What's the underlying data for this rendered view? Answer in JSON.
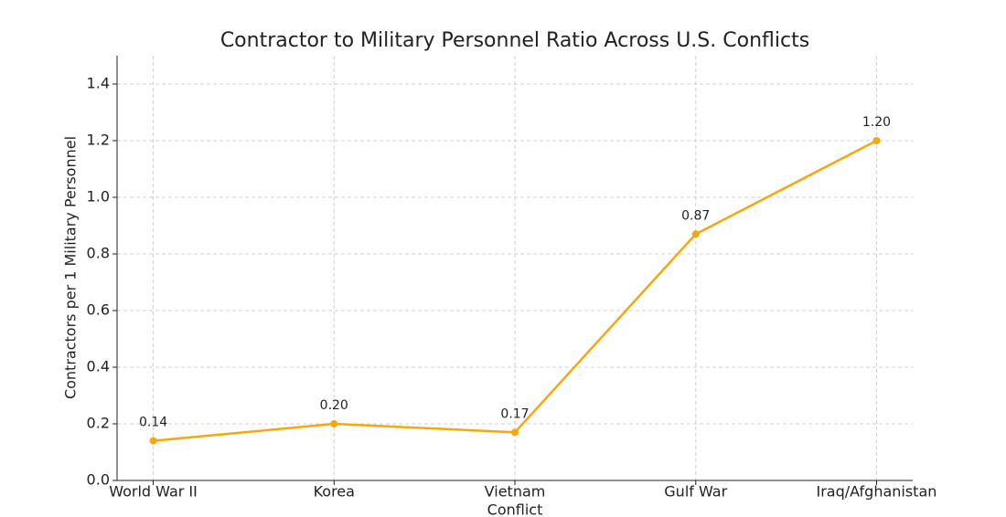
{
  "chart_data": {
    "type": "line",
    "title": "Contractor to Military Personnel Ratio Across U.S. Conflicts",
    "x_label": "Conflict",
    "y_label": "Contractors per 1 Military Personnel",
    "categories": [
      "World War II",
      "Korea",
      "Vietnam",
      "Gulf War",
      "Iraq/Afghanistan"
    ],
    "values": [
      0.14,
      0.2,
      0.17,
      0.87,
      1.2
    ],
    "value_labels": [
      "0.14",
      "0.20",
      "0.17",
      "0.87",
      "1.20"
    ],
    "color": "#f5a80c",
    "ylim": [
      0,
      1.5
    ],
    "yticks": [
      {
        "value": 0,
        "label": "0.0"
      },
      0.2,
      0.4,
      0.6,
      0.8,
      {
        "value": 1,
        "label": "1.0"
      },
      1.2,
      1.4
    ],
    "grid": true
  }
}
